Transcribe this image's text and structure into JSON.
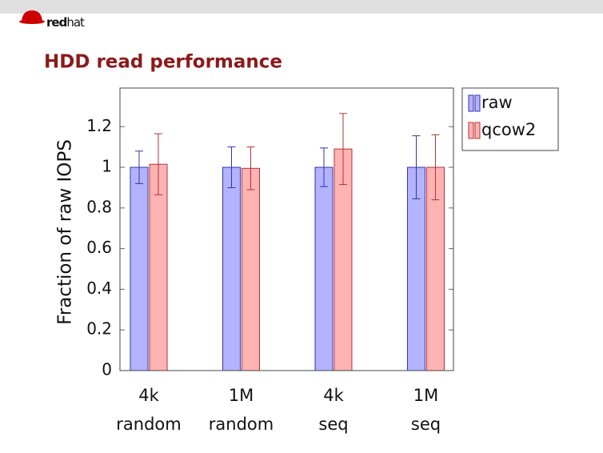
{
  "logo": [
    "red",
    "hat"
  ],
  "chart_data": {
    "type": "bar",
    "title": "HDD read performance",
    "y_label": "Fraction of raw IOPS",
    "categories": [
      [
        "4k",
        "random"
      ],
      [
        "1M",
        "random"
      ],
      [
        "4k",
        "seq"
      ],
      [
        "1M",
        "seq"
      ]
    ],
    "series": [
      {
        "name": "raw",
        "color": "#b3b3ff",
        "edge": "#3333b3",
        "values": [
          1,
          1,
          1,
          1
        ],
        "errors": [
          0.08,
          0.1,
          0.095,
          0.155
        ]
      },
      {
        "name": "qcow2",
        "color": "#ffb3b3",
        "edge": "#b33333",
        "values": [
          1.015,
          0.995,
          1.09,
          1.0
        ],
        "errors": [
          0.15,
          0.105,
          0.175,
          0.16
        ]
      }
    ],
    "ylim": [
      0,
      1.39
    ],
    "yticks": [
      0,
      0.2,
      0.4,
      0.6,
      0.8,
      1,
      1.2
    ],
    "legend": "outside-right"
  }
}
